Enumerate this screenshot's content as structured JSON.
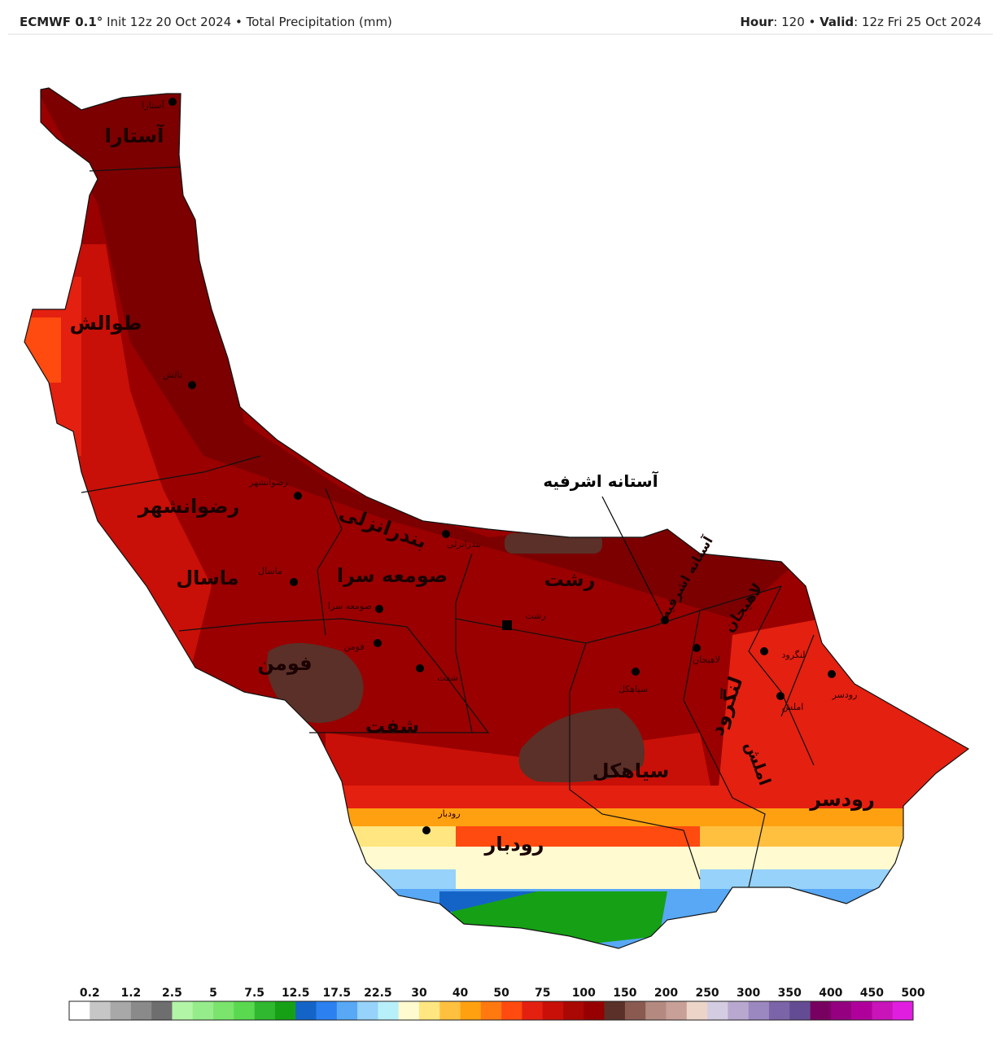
{
  "header": {
    "model": "ECMWF 0.1°",
    "init": "Init 12z 20 Oct 2024 • Total Precipitation (mm)",
    "hour_label": "Hour",
    "hour_value": ": 120 • ",
    "valid_label": "Valid",
    "valid_value": ": 12z Fri 25 Oct 2024"
  },
  "map": {
    "annotation": "آستانه اشرفیه",
    "counties": [
      "آستارا",
      "طوالش",
      "رضوانشهر",
      "ماسال",
      "صومعه سرا",
      "فومن",
      "شفت",
      "بندرانزلی",
      "رشت",
      "آستانه اشرفیه",
      "لاهیجان",
      "لنگرود",
      "سیاهکل",
      "املش",
      "رودسر",
      "رودبار"
    ],
    "cities": [
      "آستارا",
      "تالش",
      "رضوانشهر",
      "ماسال",
      "صومعه سرا",
      "فومن",
      "شفت",
      "بندرانزلی",
      "رشت",
      "سیاهکل",
      "لاهیجان",
      "لنگرود",
      "املش",
      "رودسر",
      "رودبار"
    ]
  },
  "colorbar": {
    "labels": [
      "0.2",
      "1.2",
      "2.5",
      "5",
      "7.5",
      "12.5",
      "17.5",
      "22.5",
      "30",
      "40",
      "50",
      "75",
      "100",
      "150",
      "200",
      "250",
      "300",
      "350",
      "400",
      "450",
      "500"
    ],
    "colors": [
      "#ffffff",
      "#c6c6c6",
      "#a8a8a8",
      "#8a8a8a",
      "#6e6e6e",
      "#b2f5a6",
      "#96ec8a",
      "#7ae46c",
      "#5ad850",
      "#30b830",
      "#16a016",
      "#1464c8",
      "#2c80f0",
      "#58a8f5",
      "#96d2fa",
      "#b8f0fa",
      "#fffad0",
      "#ffe680",
      "#ffc040",
      "#ffa010",
      "#ff7810",
      "#ff4a10",
      "#e42010",
      "#c81008",
      "#aa0804",
      "#960000",
      "#5a3028",
      "#8a5a50",
      "#b48a80",
      "#c8a098",
      "#ecd4c8",
      "#d4cce0",
      "#b8a8d0",
      "#9c88c0",
      "#7c64a8",
      "#644c94",
      "#780060",
      "#940080",
      "#b0009c",
      "#c814b8",
      "#e01ee0"
    ]
  }
}
